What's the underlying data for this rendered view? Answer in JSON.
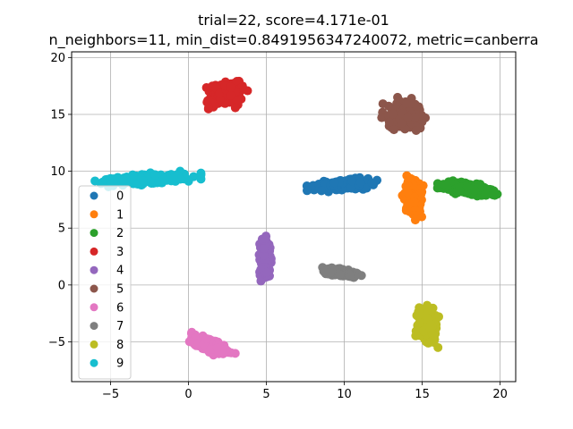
{
  "chart_data": {
    "type": "scatter",
    "title_line1": "trial=22, score=4.171e-01",
    "title_line2": "n_neighbors=11, min_dist=0.8491956347240072, metric=canberra",
    "xlabel": "",
    "ylabel": "",
    "xlim": [
      -7.5,
      21
    ],
    "ylim": [
      -8.5,
      20.5
    ],
    "xticks": [
      -5,
      0,
      5,
      10,
      15,
      20
    ],
    "yticks": [
      -5,
      0,
      5,
      10,
      15,
      20
    ],
    "xtick_labels": [
      "−5",
      "0",
      "5",
      "10",
      "15",
      "20"
    ],
    "ytick_labels": [
      "−5",
      "0",
      "5",
      "10",
      "15",
      "20"
    ],
    "grid": true,
    "legend_position": "center-left",
    "series": [
      {
        "name": "0",
        "color": "#1f77b4",
        "center": [
          10.0,
          8.8
        ],
        "spread": [
          2.4,
          0.55
        ],
        "tilt": 0.12
      },
      {
        "name": "1",
        "color": "#ff7f0e",
        "center": [
          14.4,
          7.6
        ],
        "spread": [
          0.7,
          2.0
        ],
        "tilt": -0.1
      },
      {
        "name": "2",
        "color": "#2ca02c",
        "center": [
          17.9,
          8.5
        ],
        "spread": [
          2.0,
          0.7
        ],
        "tilt": -0.2
      },
      {
        "name": "3",
        "color": "#d62728",
        "center": [
          2.3,
          16.8
        ],
        "spread": [
          1.5,
          1.4
        ],
        "tilt": 0.25
      },
      {
        "name": "4",
        "color": "#9467bd",
        "center": [
          4.95,
          2.3
        ],
        "spread": [
          0.45,
          2.0
        ],
        "tilt": 0.0
      },
      {
        "name": "5",
        "color": "#8c564b",
        "center": [
          13.8,
          14.9
        ],
        "spread": [
          1.4,
          1.6
        ],
        "tilt": 0.0
      },
      {
        "name": "6",
        "color": "#e377c2",
        "center": [
          1.4,
          -5.3
        ],
        "spread": [
          1.6,
          0.8
        ],
        "tilt": -0.45
      },
      {
        "name": "7",
        "color": "#7f7f7f",
        "center": [
          9.7,
          1.1
        ],
        "spread": [
          1.4,
          0.4
        ],
        "tilt": -0.2
      },
      {
        "name": "8",
        "color": "#bcbd22",
        "center": [
          15.3,
          -3.6
        ],
        "spread": [
          0.8,
          1.9
        ],
        "tilt": 0.0
      },
      {
        "name": "9",
        "color": "#17becf",
        "center": [
          -2.6,
          9.3
        ],
        "spread": [
          3.4,
          0.55
        ],
        "tilt": 0.08
      }
    ]
  }
}
